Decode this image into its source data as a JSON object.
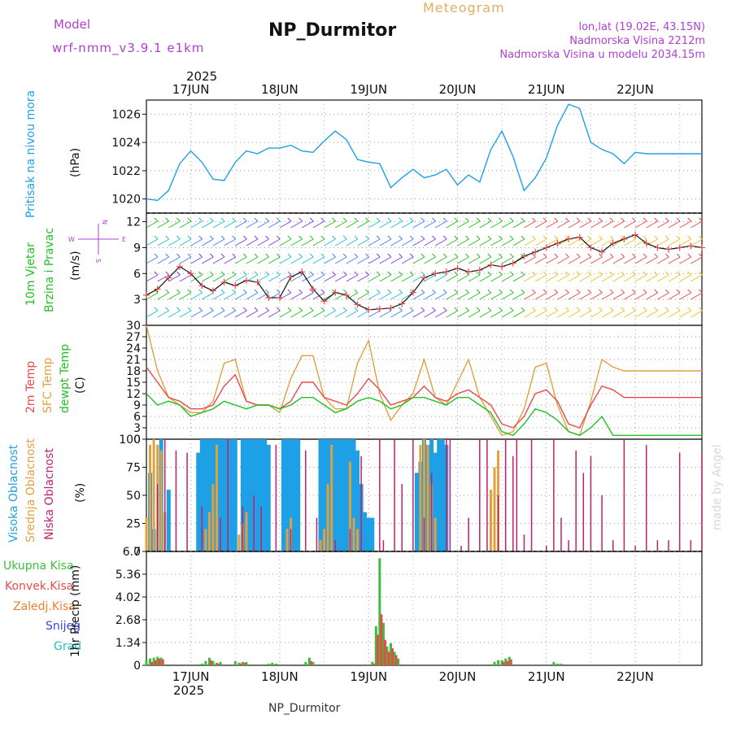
{
  "header": {
    "model_label": "Model",
    "model_value": "wrf-nmm_v3.9.1  e1km",
    "meteogram_label": "Meteogram",
    "station": "NP_Durmitor",
    "lonlat": "lon,lat (19.02E, 43.15N)",
    "altitude": "Nadmorska Visina 2212m",
    "model_altitude": "Nadmorska Visina u modelu 2034.15m"
  },
  "colors": {
    "pressure": "#1ea0e6",
    "wind_label": "#22c022",
    "temp2m": "#e84a4a",
    "sfc": "#e0a040",
    "dewpt": "#22c022",
    "high_cloud": "#1ea0e6",
    "mid_cloud": "#e0a040",
    "low_cloud": "#c0206a",
    "precip_total": "#3cbf3c",
    "precip_conv": "#e84a4a",
    "precip_frozen": "#f08030",
    "snow": "#4040e0",
    "graupel": "#20c0c0",
    "purple": "#b040d0"
  },
  "time_axis": {
    "year": "2025",
    "days": [
      "17JUN",
      "18JUN",
      "19JUN",
      "20JUN",
      "21JUN",
      "22JUN"
    ]
  },
  "panels": {
    "pressure": {
      "label": "Pritisak na nivou mora",
      "unit": "(hPa)"
    },
    "wind": {
      "label1": "10m Vjetar",
      "label2": "Brzina i Pravac",
      "unit": "(m/s)",
      "compass": [
        "N",
        "E",
        "S",
        "W"
      ]
    },
    "temp": {
      "label1": "2m Temp",
      "label2": "SFC Temp",
      "label3": "dewpt Temp",
      "unit": "(C)"
    },
    "cloud": {
      "label1": "Visoka Oblacnost",
      "label2": "Srednja Oblacnost",
      "label3": "Niska Oblacnost",
      "unit": "(%)"
    },
    "precip": {
      "legend": [
        "Ukupna Kisa",
        "Konvek.Kisa",
        "Zaledj.Kisa",
        "Snijeg",
        "Grad"
      ],
      "ylabel": "1hr Precip (mm)"
    }
  },
  "footer": {
    "station": "NP_Durmitor",
    "watermark": "made by Angel"
  },
  "chart_data": [
    {
      "type": "line",
      "title": "Pritisak na nivou mora",
      "ylabel": "(hPa)",
      "x_unit": "hours since 16JUN 12UTC",
      "ylim": [
        1019,
        1027
      ],
      "yticks": [
        1020,
        1022,
        1024,
        1026
      ],
      "grid": true,
      "series": [
        {
          "name": "Pritisak na nivou mora",
          "x": [
            0,
            3,
            6,
            9,
            12,
            15,
            18,
            21,
            24,
            27,
            30,
            33,
            36,
            39,
            42,
            45,
            48,
            51,
            54,
            57,
            60,
            63,
            66,
            69,
            72,
            75,
            78,
            81,
            84,
            87,
            90,
            93,
            96,
            99,
            102,
            105,
            108,
            111,
            114,
            117,
            120,
            123,
            126,
            129,
            132,
            135,
            138,
            141,
            144,
            147,
            150
          ],
          "values": [
            1020.0,
            1019.9,
            1020.6,
            1022.5,
            1023.4,
            1022.6,
            1021.4,
            1021.3,
            1022.6,
            1023.4,
            1023.2,
            1023.6,
            1023.6,
            1023.8,
            1023.4,
            1023.3,
            1024.1,
            1024.8,
            1024.2,
            1022.8,
            1022.6,
            1022.5,
            1020.8,
            1021.5,
            1022.1,
            1021.5,
            1021.7,
            1022.1,
            1021.0,
            1021.7,
            1021.2,
            1023.5,
            1024.8,
            1023.0,
            1020.6,
            1021.5,
            1022.9,
            1025.2,
            1026.7,
            1026.4,
            1024.0,
            1023.5,
            1023.2,
            1022.5,
            1023.3,
            1023.2,
            1023.2,
            1023.2,
            1023.2,
            1023.2,
            1023.2
          ]
        }
      ]
    },
    {
      "type": "line",
      "title": "10m Vjetar Brzina i Pravac",
      "ylabel": "(m/s)",
      "x_unit": "hours since 16JUN 12UTC",
      "ylim": [
        0,
        13
      ],
      "yticks": [
        3,
        6,
        9,
        12
      ],
      "grid": true,
      "series": [
        {
          "name": "Brzina",
          "x": [
            0,
            3,
            6,
            9,
            12,
            15,
            18,
            21,
            24,
            27,
            30,
            33,
            36,
            39,
            42,
            45,
            48,
            51,
            54,
            57,
            60,
            63,
            66,
            69,
            72,
            75,
            78,
            81,
            84,
            87,
            90,
            93,
            96,
            99,
            102,
            105,
            108,
            111,
            114,
            117,
            120,
            123,
            126,
            129,
            132,
            135,
            138,
            141,
            144,
            147,
            150
          ],
          "values": [
            3.5,
            4.2,
            5.5,
            6.8,
            6.0,
            4.6,
            4.0,
            5.0,
            4.6,
            5.2,
            5.0,
            3.2,
            3.2,
            5.6,
            6.2,
            4.2,
            2.8,
            3.8,
            3.5,
            2.4,
            1.8,
            1.9,
            2.0,
            2.5,
            3.8,
            5.5,
            6.0,
            6.2,
            6.6,
            6.2,
            6.4,
            7.0,
            6.8,
            7.2,
            8.0,
            8.5,
            9.0,
            9.5,
            10.0,
            10.2,
            9.0,
            8.5,
            9.5,
            10.0,
            10.5,
            9.5,
            9.0,
            8.8,
            9.0,
            9.2,
            9.0
          ]
        }
      ]
    },
    {
      "type": "line",
      "title": "2m Temp / SFC Temp / dewpt Temp",
      "ylabel": "(C)",
      "x_unit": "hours since 16JUN 12UTC",
      "ylim": [
        0,
        30
      ],
      "yticks": [
        0,
        3,
        6,
        9,
        12,
        15,
        18,
        21,
        24,
        27,
        30
      ],
      "grid": true,
      "series": [
        {
          "name": "2m Temp",
          "x": [
            0,
            3,
            6,
            9,
            12,
            15,
            18,
            21,
            24,
            27,
            30,
            33,
            36,
            39,
            42,
            45,
            48,
            51,
            54,
            57,
            60,
            63,
            66,
            69,
            72,
            75,
            78,
            81,
            84,
            87,
            90,
            93,
            96,
            99,
            102,
            105,
            108,
            111,
            114,
            117,
            120,
            123,
            126,
            129,
            132,
            135,
            138,
            141,
            144,
            147,
            150
          ],
          "values": [
            19,
            15,
            11,
            10,
            8,
            8,
            9,
            14,
            17,
            10,
            9,
            9,
            8,
            10,
            15,
            15,
            11,
            10,
            9,
            12,
            16,
            13,
            9,
            10,
            11,
            14,
            11,
            10,
            12,
            13,
            11,
            9,
            4,
            3,
            6,
            12,
            13,
            10,
            4,
            3,
            9,
            14,
            13,
            11,
            11,
            11,
            11,
            11,
            11,
            11,
            11
          ]
        },
        {
          "name": "SFC Temp",
          "x": [
            0,
            3,
            6,
            9,
            12,
            15,
            18,
            21,
            24,
            27,
            30,
            33,
            36,
            39,
            42,
            45,
            48,
            51,
            54,
            57,
            60,
            63,
            66,
            69,
            72,
            75,
            78,
            81,
            84,
            87,
            90,
            93,
            96,
            99,
            102,
            105,
            108,
            111,
            114,
            117,
            120,
            123,
            126,
            129,
            132,
            135,
            138,
            141,
            144,
            147,
            150
          ],
          "values": [
            30,
            18,
            11,
            9,
            7,
            7,
            10,
            20,
            21,
            10,
            9,
            9,
            7,
            16,
            22,
            22,
            11,
            8,
            8,
            20,
            26,
            12,
            5,
            9,
            12,
            21,
            11,
            9,
            15,
            21,
            11,
            6,
            1,
            2,
            8,
            19,
            20,
            9,
            2,
            1,
            10,
            21,
            19,
            18,
            18,
            18,
            18,
            18,
            18,
            18,
            18
          ]
        },
        {
          "name": "dewpt Temp",
          "x": [
            0,
            3,
            6,
            9,
            12,
            15,
            18,
            21,
            24,
            27,
            30,
            33,
            36,
            39,
            42,
            45,
            48,
            51,
            54,
            57,
            60,
            63,
            66,
            69,
            72,
            75,
            78,
            81,
            84,
            87,
            90,
            93,
            96,
            99,
            102,
            105,
            108,
            111,
            114,
            117,
            120,
            123,
            126,
            129,
            132,
            135,
            138,
            141,
            144,
            147,
            150
          ],
          "values": [
            12,
            9,
            10,
            9,
            6,
            7,
            8,
            10,
            9,
            8,
            9,
            9,
            8,
            9,
            11,
            11,
            9,
            7,
            8,
            10,
            11,
            10,
            8,
            9,
            11,
            11,
            10,
            9,
            11,
            11,
            9,
            7,
            2,
            1,
            4,
            8,
            7,
            5,
            2,
            1,
            3,
            6,
            1,
            1,
            1,
            1,
            1,
            1,
            1,
            1,
            1
          ]
        }
      ]
    },
    {
      "type": "bar",
      "title": "Visoka / Srednja / Niska Oblacnost",
      "ylabel": "(%)",
      "x_unit": "hours since 16JUN 12UTC",
      "ylim": [
        0,
        100
      ],
      "yticks": [
        0,
        25,
        50,
        75,
        100
      ],
      "grid": true,
      "series": [
        {
          "name": "Visoka Oblacnost",
          "x": [
            1,
            2,
            4,
            6,
            14,
            15,
            16,
            17,
            18,
            19,
            20,
            21,
            22,
            23,
            24,
            26,
            27,
            28,
            29,
            30,
            31,
            32,
            33,
            37,
            38,
            39,
            40,
            41,
            47,
            48,
            49,
            50,
            51,
            52,
            53,
            54,
            55,
            56,
            57,
            58,
            59,
            60,
            61,
            73,
            74,
            75,
            76,
            77,
            78,
            79,
            80,
            81
          ],
          "values": [
            70,
            20,
            100,
            55,
            88,
            100,
            100,
            100,
            100,
            100,
            100,
            100,
            100,
            100,
            100,
            100,
            100,
            100,
            100,
            100,
            100,
            100,
            95,
            100,
            100,
            100,
            100,
            100,
            100,
            100,
            100,
            100,
            100,
            100,
            100,
            100,
            100,
            100,
            90,
            60,
            35,
            30,
            30,
            70,
            80,
            100,
            95,
            100,
            88,
            100,
            100,
            95
          ]
        },
        {
          "name": "Srednja Oblacnost",
          "x": [
            0,
            1,
            2,
            3,
            4,
            5,
            16,
            17,
            18,
            19,
            25,
            26,
            27,
            38,
            39,
            47,
            48,
            49,
            50,
            55,
            56,
            57,
            74,
            75,
            76,
            77,
            78,
            93,
            94,
            95
          ],
          "values": [
            30,
            95,
            100,
            95,
            90,
            35,
            20,
            35,
            60,
            95,
            15,
            25,
            35,
            20,
            30,
            10,
            20,
            60,
            95,
            80,
            30,
            20,
            95,
            100,
            95,
            60,
            30,
            55,
            75,
            90
          ]
        },
        {
          "name": "Niska Oblacnost",
          "x": [
            3,
            5,
            8,
            11,
            15,
            20,
            22,
            26,
            29,
            31,
            35,
            39,
            43,
            46,
            51,
            55,
            58,
            63,
            64,
            67,
            69,
            72,
            75,
            77,
            81,
            82,
            85,
            87,
            90,
            92,
            95,
            97,
            99,
            100,
            102,
            104,
            108,
            110,
            112,
            114,
            116,
            118,
            120,
            123,
            126,
            129,
            132,
            135,
            138,
            141,
            144,
            147,
            150
          ],
          "values": [
            60,
            100,
            90,
            88,
            40,
            30,
            100,
            40,
            50,
            40,
            95,
            20,
            90,
            30,
            10,
            20,
            85,
            100,
            10,
            100,
            60,
            100,
            30,
            70,
            100,
            100,
            5,
            30,
            100,
            100,
            50,
            100,
            85,
            100,
            15,
            100,
            5,
            100,
            30,
            10,
            90,
            70,
            85,
            50,
            10,
            100,
            5,
            95,
            10,
            10,
            88,
            10,
            88
          ]
        }
      ]
    },
    {
      "type": "bar",
      "title": "1hr Precip",
      "ylabel": "1hr Precip (mm)",
      "x_unit": "hours since 16JUN 12UTC",
      "ylim": [
        0,
        6.7
      ],
      "yticks": [
        0,
        1.34,
        2.68,
        4.02,
        5.36,
        6.7
      ],
      "grid": true,
      "series": [
        {
          "name": "Ukupna Kisa",
          "x": [
            0,
            1,
            2,
            3,
            4,
            15,
            16,
            17,
            18,
            19,
            20,
            24,
            25,
            26,
            27,
            33,
            34,
            35,
            43,
            44,
            45,
            61,
            62,
            63,
            64,
            65,
            66,
            67,
            68,
            94,
            95,
            96,
            97,
            98,
            110,
            111,
            112
          ],
          "values": [
            0.3,
            0.4,
            0.45,
            0.5,
            0.45,
            0.1,
            0.25,
            0.45,
            0.25,
            0.15,
            0.2,
            0.25,
            0.15,
            0.2,
            0.2,
            0.1,
            0.15,
            0.1,
            0.2,
            0.45,
            0.2,
            0.2,
            2.3,
            6.3,
            2.5,
            1.1,
            1.3,
            0.8,
            0.4,
            0.2,
            0.3,
            0.3,
            0.4,
            0.5,
            0.2,
            0.1,
            0.1
          ]
        },
        {
          "name": "Konvek.Kisa",
          "x": [
            1,
            2,
            3,
            4,
            17,
            19,
            25,
            26,
            44,
            61,
            62,
            63,
            64,
            65,
            66,
            67,
            96,
            97,
            98
          ],
          "values": [
            0.2,
            0.3,
            0.4,
            0.35,
            0.3,
            0.1,
            0.1,
            0.15,
            0.25,
            0.1,
            1.8,
            3.0,
            1.5,
            0.8,
            1.0,
            0.6,
            0.2,
            0.25,
            0.35
          ]
        }
      ]
    }
  ]
}
